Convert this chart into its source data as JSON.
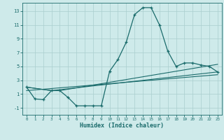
{
  "title": "",
  "xlabel": "Humidex (Indice chaleur)",
  "bg_color": "#ceeaea",
  "grid_color": "#aacece",
  "line_color": "#1a6b6b",
  "xlim": [
    -0.5,
    23.5
  ],
  "ylim": [
    -2.0,
    14.2
  ],
  "yticks": [
    -1,
    1,
    3,
    5,
    7,
    9,
    11,
    13
  ],
  "xticks": [
    0,
    1,
    2,
    3,
    4,
    5,
    6,
    7,
    8,
    9,
    10,
    11,
    12,
    13,
    14,
    15,
    16,
    17,
    18,
    19,
    20,
    21,
    22,
    23
  ],
  "line1_x": [
    0,
    1,
    2,
    3,
    4,
    5,
    6,
    7,
    8,
    9,
    10,
    11,
    12,
    13,
    14,
    15,
    16,
    17,
    18,
    19,
    20,
    21,
    22,
    23
  ],
  "line1_y": [
    2.0,
    0.3,
    0.2,
    1.5,
    1.5,
    0.5,
    -0.7,
    -0.7,
    -0.7,
    -0.7,
    4.3,
    6.0,
    8.5,
    12.5,
    13.5,
    13.5,
    11.0,
    7.2,
    5.0,
    5.5,
    5.5,
    5.2,
    5.0,
    4.2
  ],
  "line2_x": [
    0,
    3,
    4,
    23
  ],
  "line2_y": [
    2.0,
    1.5,
    1.5,
    5.3
  ],
  "line3_x": [
    0,
    3,
    23
  ],
  "line3_y": [
    2.0,
    1.5,
    4.2
  ],
  "line4_x": [
    0,
    23
  ],
  "line4_y": [
    1.5,
    3.8
  ]
}
